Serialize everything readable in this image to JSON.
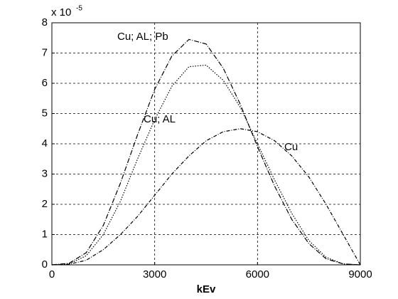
{
  "chart_data": {
    "type": "line",
    "x_label": "kEv",
    "y_multiplier": "x 10",
    "y_exponent": "-5",
    "x": [
      0,
      500,
      1000,
      1500,
      2000,
      2500,
      3000,
      3500,
      4000,
      4500,
      5000,
      5500,
      6000,
      6500,
      7000,
      7500,
      8000,
      8500,
      9000
    ],
    "series": [
      {
        "name": "Cu; AL; Pb",
        "color": "#000000",
        "dash": "7,2,1,2",
        "values": [
          0,
          0.05,
          0.4,
          1.3,
          2.7,
          4.3,
          5.8,
          6.9,
          7.45,
          7.3,
          6.5,
          5.3,
          3.9,
          2.6,
          1.5,
          0.7,
          0.2,
          0.03,
          0
        ]
      },
      {
        "name": "Cu; AL",
        "color": "#000000",
        "dash": "1.5,2",
        "values": [
          0,
          0.03,
          0.3,
          1.0,
          2.1,
          3.5,
          4.8,
          5.9,
          6.55,
          6.6,
          6.1,
          5.2,
          4.0,
          2.8,
          1.7,
          0.8,
          0.25,
          0.03,
          0
        ]
      },
      {
        "name": "Cu",
        "color": "#000000",
        "dash": "5,2,1,2",
        "values": [
          0,
          0.02,
          0.15,
          0.5,
          1.0,
          1.6,
          2.3,
          3.0,
          3.6,
          4.1,
          4.4,
          4.5,
          4.4,
          4.1,
          3.6,
          2.9,
          2.0,
          1.0,
          0
        ]
      }
    ],
    "xlim": [
      0,
      9000
    ],
    "xticks": [
      0,
      3000,
      6000,
      9000
    ],
    "ylim": [
      0,
      8
    ],
    "yticks": [
      0,
      1,
      2,
      3,
      4,
      5,
      6,
      7,
      8
    ],
    "grid": true
  }
}
